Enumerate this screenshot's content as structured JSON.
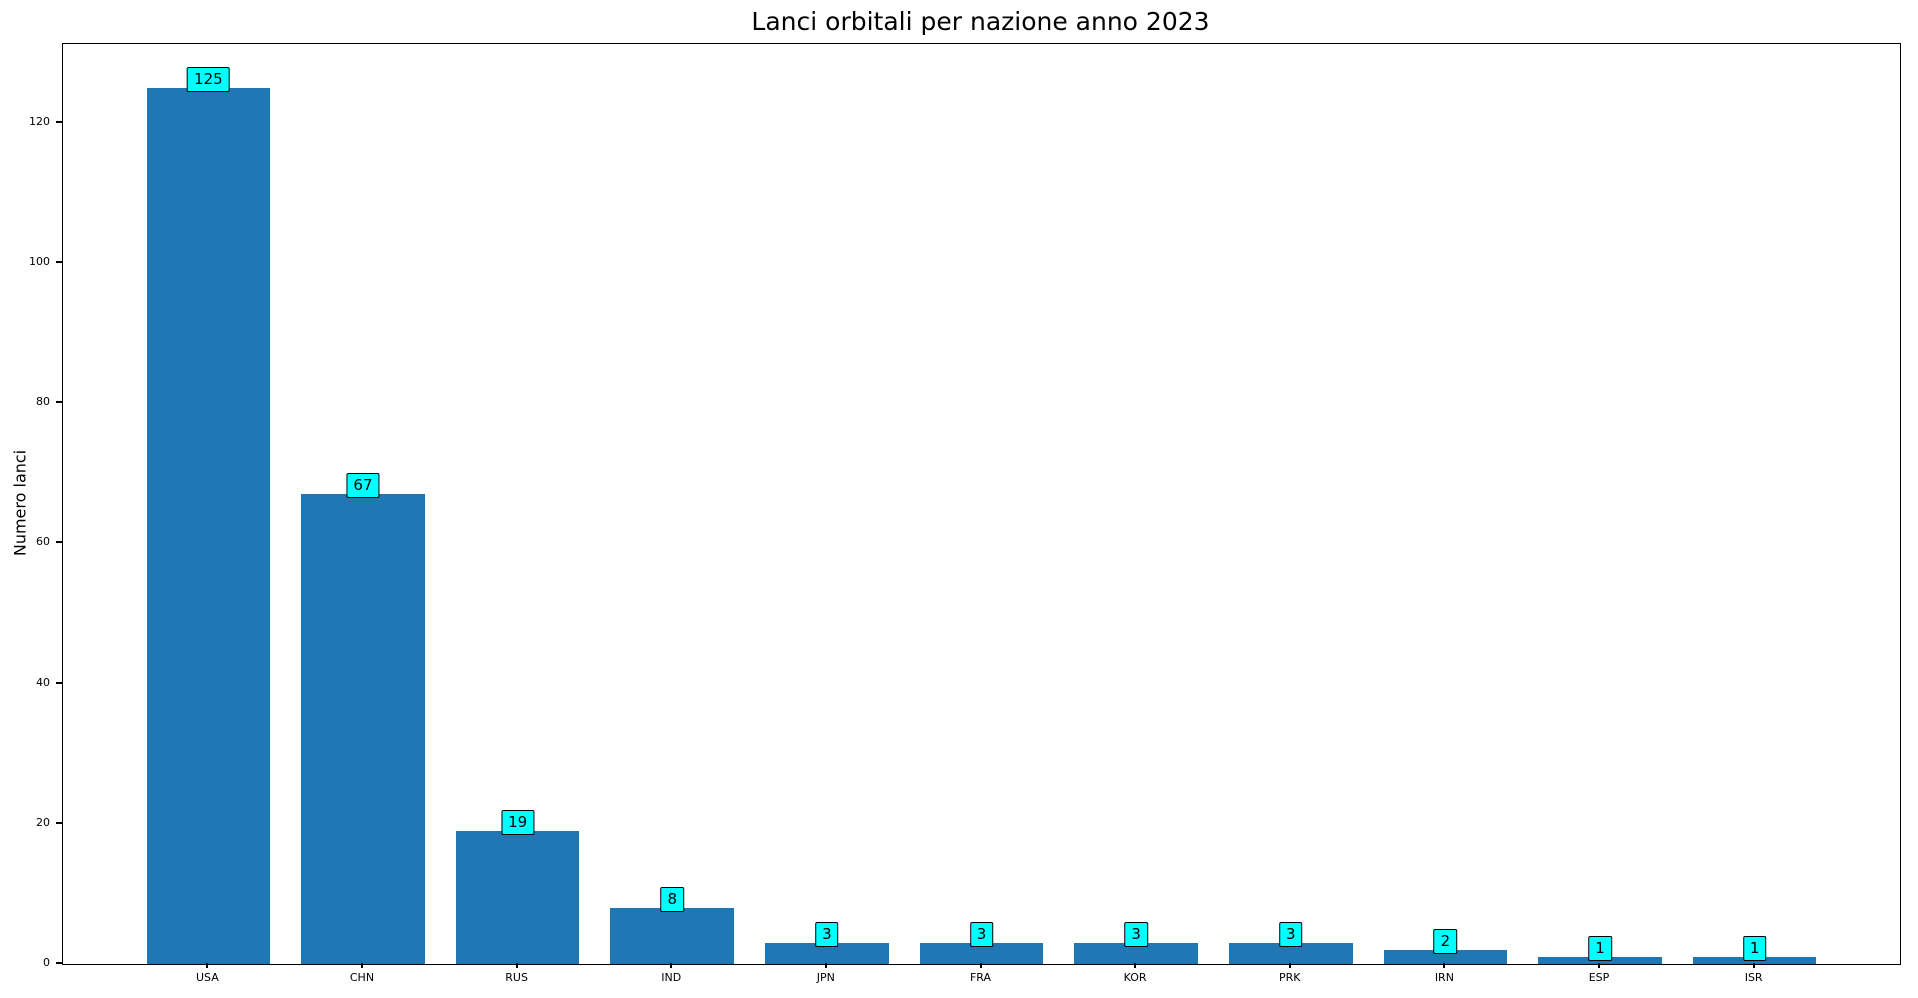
{
  "chart_data": {
    "type": "bar",
    "title": "Lanci orbitali per nazione anno 2023",
    "xlabel": "",
    "ylabel": "Numero lanci",
    "categories": [
      "USA",
      "CHN",
      "RUS",
      "IND",
      "JPN",
      "FRA",
      "KOR",
      "PRK",
      "IRN",
      "ESP",
      "ISR"
    ],
    "values": [
      125,
      67,
      19,
      8,
      3,
      3,
      3,
      3,
      2,
      1,
      1
    ],
    "value_labels": [
      "125",
      "67",
      "19",
      "8",
      "3",
      "3",
      "3",
      "3",
      "2",
      "1",
      "1"
    ],
    "yticks": [
      0,
      20,
      40,
      60,
      80,
      100,
      120
    ],
    "ylim": [
      0,
      131.25
    ],
    "grid": false,
    "legend": "none",
    "colors": {
      "bar": "#1f77b4",
      "annotation_bg": "#00ffff",
      "annotation_border": "#000000",
      "text": "#000000"
    }
  }
}
